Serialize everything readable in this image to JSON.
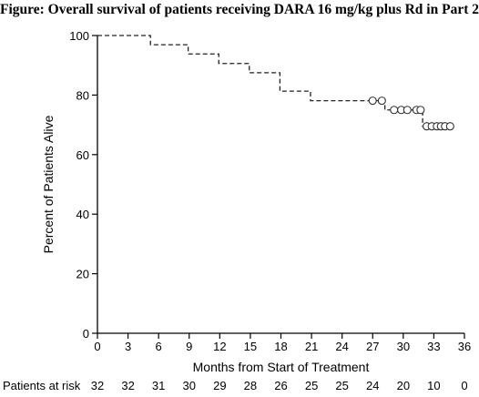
{
  "figure_title": "Figure: Overall survival of patients receiving DARA 16 mg/kg plus Rd in Part 2",
  "chart_data": {
    "type": "line",
    "title": "Figure: Overall survival of patients receiving DARA 16 mg/kg plus Rd in Part 2",
    "xlabel": "Months from Start of Treatment",
    "ylabel": "Percent of Patients Alive",
    "xlim": [
      0,
      36
    ],
    "ylim": [
      0,
      100
    ],
    "xticks": [
      0,
      3,
      6,
      9,
      12,
      15,
      18,
      21,
      24,
      27,
      30,
      33,
      36
    ],
    "yticks": [
      0,
      20,
      40,
      60,
      80,
      100
    ],
    "grid": false,
    "legend": "none",
    "series": [
      {
        "style": "dashed step (Kaplan-Meier)",
        "color": "#222222",
        "steps": [
          {
            "x": 0,
            "y": 100
          },
          {
            "x": 5.2,
            "y": 96.9
          },
          {
            "x": 8.9,
            "y": 93.8
          },
          {
            "x": 11.9,
            "y": 90.6
          },
          {
            "x": 14.9,
            "y": 87.5
          },
          {
            "x": 17.9,
            "y": 81.3
          },
          {
            "x": 20.9,
            "y": 78.1
          },
          {
            "x": 28.2,
            "y": 75.0
          },
          {
            "x": 31.9,
            "y": 69.5
          }
        ],
        "end_x": 34.6,
        "censored": [
          {
            "x": 27.0,
            "y": 78.1
          },
          {
            "x": 27.9,
            "y": 78.1
          },
          {
            "x": 29.1,
            "y": 75.0
          },
          {
            "x": 29.8,
            "y": 75.0
          },
          {
            "x": 30.4,
            "y": 75.0
          },
          {
            "x": 31.3,
            "y": 75.0
          },
          {
            "x": 31.7,
            "y": 75.0
          },
          {
            "x": 32.3,
            "y": 69.5
          },
          {
            "x": 32.8,
            "y": 69.5
          },
          {
            "x": 33.3,
            "y": 69.5
          },
          {
            "x": 33.7,
            "y": 69.5
          },
          {
            "x": 34.1,
            "y": 69.5
          },
          {
            "x": 34.6,
            "y": 69.5
          }
        ]
      }
    ],
    "risk_table": {
      "label": "Patients at risk",
      "times": [
        0,
        3,
        6,
        9,
        12,
        15,
        18,
        21,
        24,
        27,
        30,
        33,
        36
      ],
      "counts": [
        "32",
        "32",
        "31",
        "30",
        "29",
        "28",
        "26",
        "25",
        "25",
        "24",
        "20",
        "10",
        "0"
      ]
    }
  }
}
